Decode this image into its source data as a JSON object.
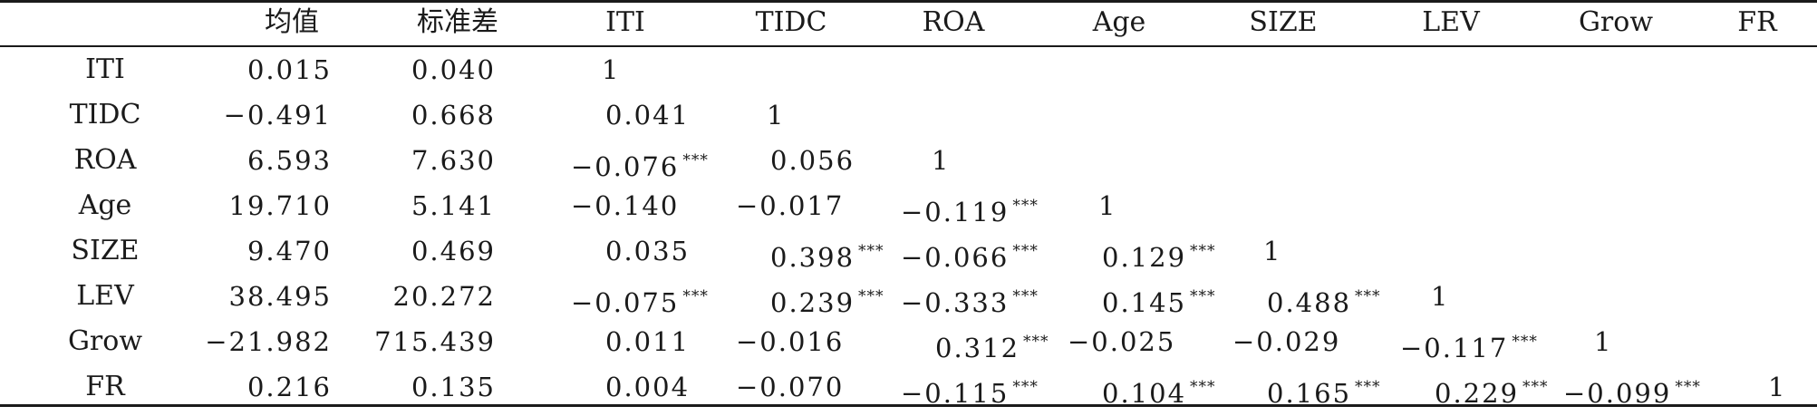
{
  "table": {
    "headers": [
      "",
      "均值",
      "标准差",
      "ITI",
      "TIDC",
      "ROA",
      "Age",
      "SIZE",
      "LEV",
      "Grow",
      "FR"
    ],
    "rows": [
      {
        "label": "ITI",
        "cells": [
          {
            "v": "0.015"
          },
          {
            "v": "0.040"
          },
          {
            "v": "1"
          }
        ]
      },
      {
        "label": "TIDC",
        "cells": [
          {
            "v": "−0.491"
          },
          {
            "v": "0.668"
          },
          {
            "v": "0.041"
          },
          {
            "v": "1"
          }
        ]
      },
      {
        "label": "ROA",
        "cells": [
          {
            "v": "6.593"
          },
          {
            "v": "7.630"
          },
          {
            "v": "−0.076",
            "s": "***"
          },
          {
            "v": "0.056"
          },
          {
            "v": "1"
          }
        ]
      },
      {
        "label": "Age",
        "cells": [
          {
            "v": "19.710"
          },
          {
            "v": "5.141"
          },
          {
            "v": "−0.140"
          },
          {
            "v": "−0.017"
          },
          {
            "v": "−0.119",
            "s": "***"
          },
          {
            "v": "1"
          }
        ]
      },
      {
        "label": "SIZE",
        "cells": [
          {
            "v": "9.470"
          },
          {
            "v": "0.469"
          },
          {
            "v": "0.035"
          },
          {
            "v": "0.398",
            "s": "***"
          },
          {
            "v": "−0.066",
            "s": "***"
          },
          {
            "v": "0.129",
            "s": "***"
          },
          {
            "v": "1"
          }
        ]
      },
      {
        "label": "LEV",
        "cells": [
          {
            "v": "38.495"
          },
          {
            "v": "20.272"
          },
          {
            "v": "−0.075",
            "s": "***"
          },
          {
            "v": "0.239",
            "s": "***"
          },
          {
            "v": "−0.333",
            "s": "***"
          },
          {
            "v": "0.145",
            "s": "***"
          },
          {
            "v": "0.488",
            "s": "***"
          },
          {
            "v": "1"
          }
        ]
      },
      {
        "label": "Grow",
        "cells": [
          {
            "v": "−21.982"
          },
          {
            "v": "715.439"
          },
          {
            "v": "0.011"
          },
          {
            "v": "−0.016"
          },
          {
            "v": "0.312",
            "s": "***"
          },
          {
            "v": "−0.025"
          },
          {
            "v": "−0.029"
          },
          {
            "v": "−0.117",
            "s": "***"
          },
          {
            "v": "1"
          }
        ]
      },
      {
        "label": "FR",
        "cells": [
          {
            "v": "0.216"
          },
          {
            "v": "0.135"
          },
          {
            "v": "0.004"
          },
          {
            "v": "−0.070"
          },
          {
            "v": "−0.115",
            "s": "***"
          },
          {
            "v": "0.104",
            "s": "***"
          },
          {
            "v": "0.165",
            "s": "***"
          },
          {
            "v": "0.229",
            "s": "***"
          },
          {
            "v": "−0.099",
            "s": "***"
          },
          {
            "v": "1"
          }
        ]
      }
    ]
  }
}
